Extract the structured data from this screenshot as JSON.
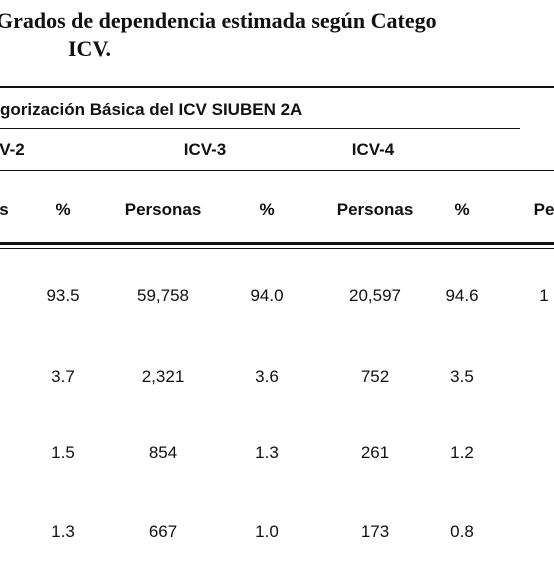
{
  "title": {
    "line1": "Grados de dependencia estimada según Catego",
    "line2": "ICV."
  },
  "table": {
    "super_header": "gorización Básica del ICV SIUBEN 2A",
    "groups": [
      "V-2",
      "ICV-3",
      "ICV-4"
    ],
    "columns": [
      "s",
      "%",
      "Personas",
      "%",
      "Personas",
      "%",
      "Pe"
    ],
    "rows": [
      [
        "93.5",
        "59,758",
        "94.0",
        "20,597",
        "94.6",
        "1"
      ],
      [
        "3.7",
        "2,321",
        "3.6",
        "752",
        "3.5"
      ],
      [
        "1.5",
        "854",
        "1.3",
        "261",
        "1.2"
      ],
      [
        "1.3",
        "667",
        "1.0",
        "173",
        "0.8"
      ]
    ]
  }
}
